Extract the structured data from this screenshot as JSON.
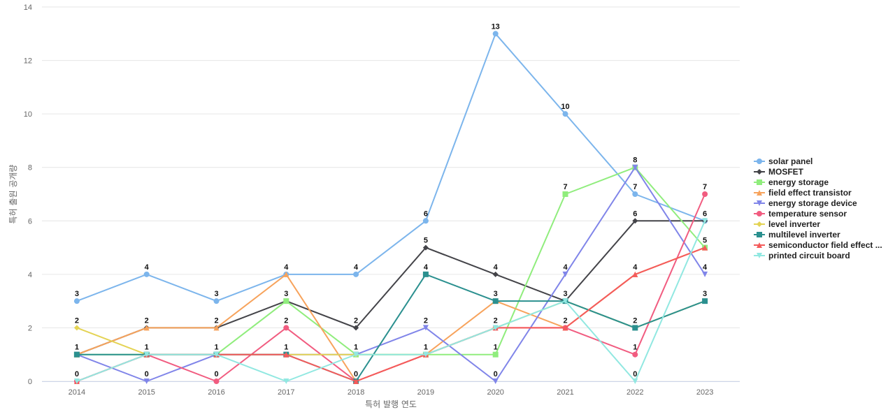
{
  "chart_data": {
    "type": "line",
    "title": "",
    "xlabel": "특허 발행 연도",
    "ylabel": "특허 출원 공개량",
    "categories": [
      "2014",
      "2015",
      "2016",
      "2017",
      "2018",
      "2019",
      "2020",
      "2021",
      "2022",
      "2023"
    ],
    "ylim": [
      0,
      14
    ],
    "yticks": [
      0,
      2,
      4,
      6,
      8,
      10,
      12,
      14
    ],
    "grid": true,
    "legend_position": "right",
    "series": [
      {
        "name": "solar panel",
        "color": "#7cb5ec",
        "marker": "circle",
        "values": [
          3,
          4,
          3,
          4,
          4,
          6,
          13,
          10,
          7,
          6
        ]
      },
      {
        "name": "MOSFET",
        "color": "#434348",
        "marker": "diamond",
        "values": [
          1,
          2,
          2,
          3,
          2,
          5,
          4,
          3,
          6,
          6
        ]
      },
      {
        "name": "energy storage",
        "color": "#90ed7d",
        "marker": "square",
        "values": [
          1,
          1,
          1,
          3,
          1,
          1,
          1,
          7,
          8,
          5
        ]
      },
      {
        "name": "field effect transistor",
        "color": "#f7a35c",
        "marker": "triangle",
        "values": [
          1,
          2,
          2,
          4,
          0,
          1,
          3,
          2,
          4,
          5
        ]
      },
      {
        "name": "energy storage device",
        "color": "#8085e9",
        "marker": "triangle-down",
        "values": [
          1,
          0,
          1,
          1,
          1,
          2,
          0,
          4,
          8,
          4
        ]
      },
      {
        "name": "temperature sensor",
        "color": "#f15c80",
        "marker": "circle",
        "values": [
          0,
          1,
          0,
          2,
          0,
          1,
          2,
          2,
          1,
          7
        ]
      },
      {
        "name": "level inverter",
        "color": "#e4d354",
        "marker": "diamond",
        "values": [
          2,
          1,
          1,
          1,
          1,
          1,
          2,
          3,
          2,
          3
        ]
      },
      {
        "name": "multilevel inverter",
        "color": "#2b908f",
        "marker": "square",
        "values": [
          1,
          1,
          1,
          1,
          0,
          4,
          3,
          3,
          2,
          3
        ]
      },
      {
        "name": "semiconductor field effect ...",
        "color": "#f45b5b",
        "marker": "triangle",
        "values": [
          0,
          1,
          1,
          1,
          0,
          1,
          2,
          2,
          4,
          5
        ]
      },
      {
        "name": "printed circuit board",
        "color": "#91e8e1",
        "marker": "triangle-down",
        "values": [
          0,
          1,
          1,
          0,
          1,
          1,
          2,
          3,
          0,
          6
        ]
      }
    ],
    "data_labels": {
      "2014": [
        0,
        1,
        2,
        3
      ],
      "2015": [
        0,
        1,
        2,
        4
      ],
      "2016": [
        0,
        1,
        2,
        3
      ],
      "2017": [
        1,
        2,
        3,
        4
      ],
      "2018": [
        0,
        1,
        2,
        4
      ],
      "2019": [
        1,
        2,
        4,
        5,
        6
      ],
      "2020": [
        0,
        1,
        2,
        3,
        4,
        13
      ],
      "2021": [
        2,
        3,
        4,
        7,
        10
      ],
      "2022": [
        0,
        1,
        2,
        4,
        6,
        7,
        8
      ],
      "2023": [
        3,
        4,
        5,
        6,
        7
      ]
    }
  }
}
